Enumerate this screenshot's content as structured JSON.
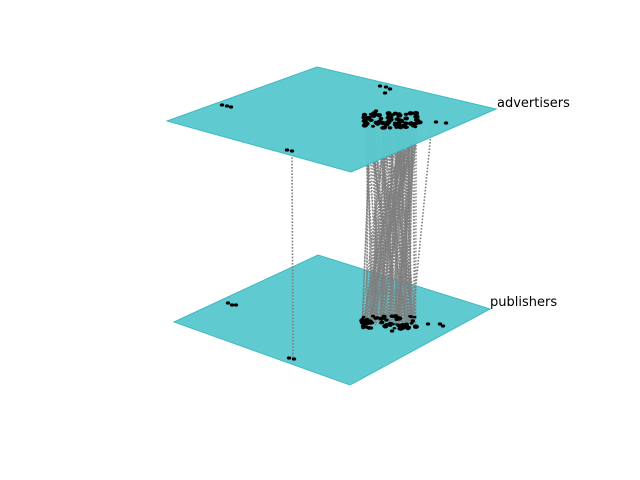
{
  "layers": [
    {
      "id": "top",
      "label": "advertisers"
    },
    {
      "id": "bottom",
      "label": "publishers"
    }
  ],
  "colors": {
    "plane_fill": "#5bc8cf",
    "plane_edge": "#3fbac3",
    "node": "#000000",
    "interlayer_edge": "#7f7f7f"
  },
  "style": {
    "interlayer_edge_dash": "dotted",
    "interlayer_edge_style_name": "dotted-gray"
  }
}
